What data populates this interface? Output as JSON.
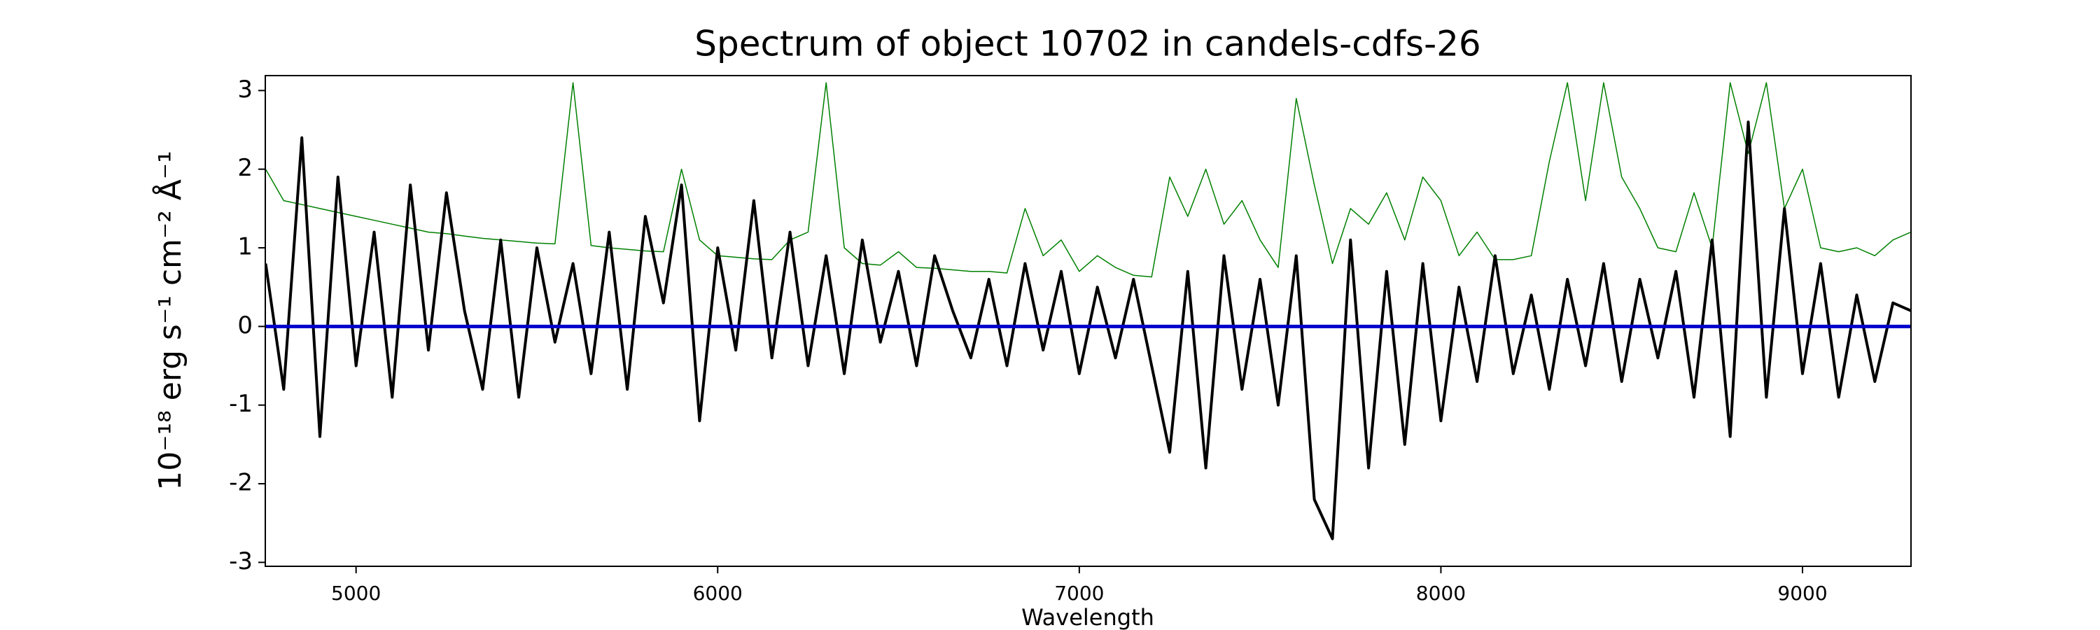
{
  "chart_data": {
    "type": "line",
    "title": "Spectrum of object 10702 in candels-cdfs-26",
    "xlabel": "Wavelength",
    "ylabel": "10⁻¹⁸ erg s⁻¹ cm⁻² Å⁻¹",
    "x": [
      4750,
      4800,
      4850,
      4900,
      4950,
      5000,
      5050,
      5100,
      5150,
      5200,
      5250,
      5300,
      5350,
      5400,
      5450,
      5500,
      5550,
      5600,
      5650,
      5700,
      5750,
      5800,
      5850,
      5900,
      5950,
      6000,
      6050,
      6100,
      6150,
      6200,
      6250,
      6300,
      6350,
      6400,
      6450,
      6500,
      6550,
      6600,
      6650,
      6700,
      6750,
      6800,
      6850,
      6900,
      6950,
      7000,
      7050,
      7100,
      7150,
      7200,
      7250,
      7300,
      7350,
      7400,
      7450,
      7500,
      7550,
      7600,
      7650,
      7700,
      7750,
      7800,
      7850,
      7900,
      7950,
      8000,
      8050,
      8100,
      8150,
      8200,
      8250,
      8300,
      8350,
      8400,
      8450,
      8500,
      8550,
      8600,
      8650,
      8700,
      8750,
      8800,
      8850,
      8900,
      8950,
      9000,
      9050,
      9100,
      9150,
      9200,
      9250,
      9300
    ],
    "series": [
      {
        "color": "#008000",
        "width": 1.5,
        "values": [
          2.0,
          1.6,
          1.55,
          1.5,
          1.45,
          1.4,
          1.35,
          1.3,
          1.25,
          1.2,
          1.18,
          1.15,
          1.12,
          1.1,
          1.08,
          1.06,
          1.05,
          3.1,
          1.03,
          1.0,
          0.98,
          0.96,
          0.95,
          2.0,
          1.1,
          0.9,
          0.88,
          0.86,
          0.85,
          1.1,
          1.2,
          3.1,
          1.0,
          0.8,
          0.78,
          0.95,
          0.75,
          0.74,
          0.72,
          0.7,
          0.7,
          0.68,
          1.5,
          0.9,
          1.1,
          0.7,
          0.9,
          0.75,
          0.65,
          0.63,
          1.9,
          1.4,
          2.0,
          1.3,
          1.6,
          1.1,
          0.75,
          2.9,
          1.8,
          0.8,
          1.5,
          1.3,
          1.7,
          1.1,
          1.9,
          1.6,
          0.9,
          1.2,
          0.85,
          0.85,
          0.9,
          2.1,
          3.1,
          1.6,
          3.1,
          1.9,
          1.5,
          1.0,
          0.95,
          1.7,
          1.0,
          3.1,
          2.2,
          3.1,
          1.5,
          2.0,
          1.0,
          0.95,
          1.0,
          0.9,
          1.1,
          1.2
        ]
      },
      {
        "color": "#000000",
        "width": 4,
        "values": [
          0.8,
          -0.8,
          2.4,
          -1.4,
          1.9,
          -0.5,
          1.2,
          -0.9,
          1.8,
          -0.3,
          1.7,
          0.2,
          -0.8,
          1.1,
          -0.9,
          1.0,
          -0.2,
          0.8,
          -0.6,
          1.2,
          -0.8,
          1.4,
          0.3,
          1.8,
          -1.2,
          1.0,
          -0.3,
          1.6,
          -0.4,
          1.2,
          -0.5,
          0.9,
          -0.6,
          1.1,
          -0.2,
          0.7,
          -0.5,
          0.9,
          0.2,
          -0.4,
          0.6,
          -0.5,
          0.8,
          -0.3,
          0.7,
          -0.6,
          0.5,
          -0.4,
          0.6,
          -0.5,
          -1.6,
          0.7,
          -1.8,
          0.9,
          -0.8,
          0.6,
          -1.0,
          0.9,
          -2.2,
          -2.7,
          1.1,
          -1.8,
          0.7,
          -1.5,
          0.8,
          -1.2,
          0.5,
          -0.7,
          0.9,
          -0.6,
          0.4,
          -0.8,
          0.6,
          -0.5,
          0.8,
          -0.7,
          0.6,
          -0.4,
          0.7,
          -0.9,
          1.1,
          -1.4,
          2.6,
          -0.9,
          1.5,
          -0.6,
          0.8,
          -0.9,
          0.4,
          -0.7,
          0.3,
          0.2
        ]
      },
      {
        "color": "#0000cc",
        "width": 5,
        "x": [
          4750,
          9300
        ],
        "values": [
          0,
          0
        ]
      }
    ],
    "xlim": [
      4749,
      9300
    ],
    "ylim": [
      -3.05,
      3.19
    ],
    "xticks": [
      5000,
      6000,
      7000,
      8000,
      9000
    ],
    "yticks": [
      -3,
      -2,
      -1,
      0,
      1,
      2,
      3
    ]
  }
}
